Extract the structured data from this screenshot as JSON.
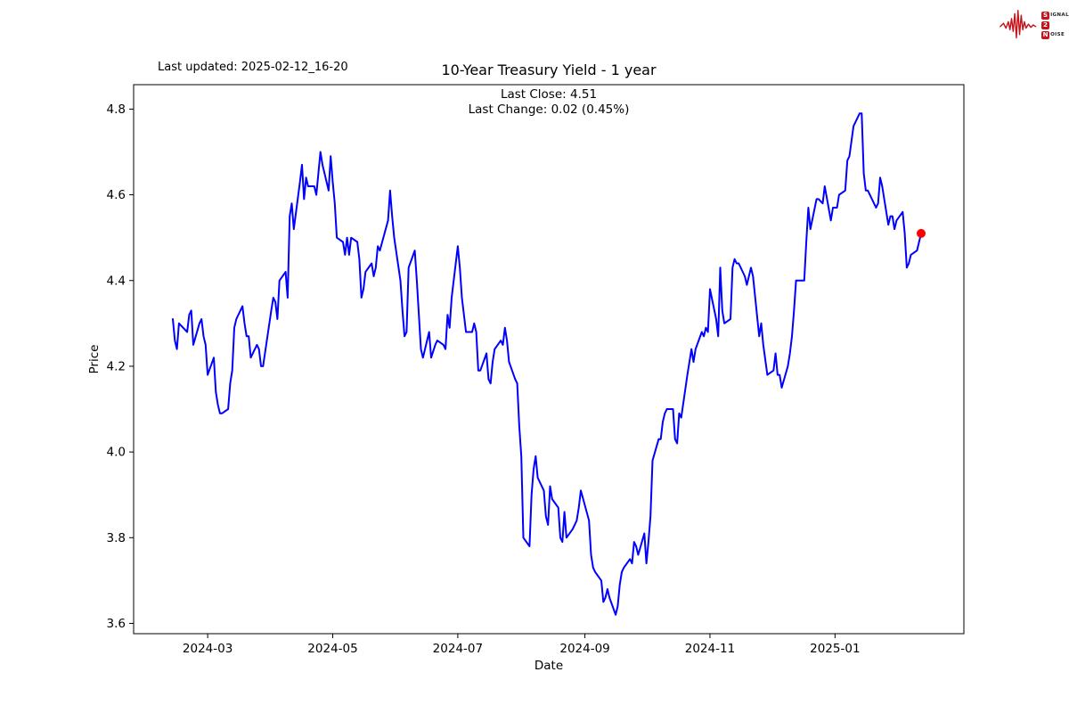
{
  "header": {
    "last_updated": "Last updated: 2025-02-12_16-20",
    "title": "10-Year Treasury Yield - 1 year",
    "subtitle_line1": "Last Close: 4.51",
    "subtitle_line2": "Last Change: 0.02 (0.45%)"
  },
  "logo": {
    "name": "Signal 2 Noise",
    "color": "#c3161c",
    "row1_letter": "S",
    "row1_rest": "IGNAL",
    "row2_letter": "2",
    "row2_rest": "",
    "row3_letter": "N",
    "row3_rest": "OISE"
  },
  "chart_data": {
    "type": "line",
    "title": "10-Year Treasury Yield - 1 year",
    "xlabel": "Date",
    "ylabel": "Price",
    "last_close": 4.51,
    "last_change": 0.02,
    "last_change_pct": "0.45%",
    "line_color": "#0000ff",
    "marker_color": "#ff0000",
    "axis_color": "#000000",
    "ylim": [
      3.576,
      4.857
    ],
    "grid": false,
    "legend": "none",
    "yticks": [
      {
        "v": 3.6,
        "label": "3.6"
      },
      {
        "v": 3.8,
        "label": "3.8"
      },
      {
        "v": 4.0,
        "label": "4.0"
      },
      {
        "v": 4.2,
        "label": "4.2"
      },
      {
        "v": 4.4,
        "label": "4.4"
      },
      {
        "v": 4.6,
        "label": "4.6"
      },
      {
        "v": 4.8,
        "label": "4.8"
      }
    ],
    "xticks": [
      {
        "date": "2024-03-01",
        "label": "2024-03"
      },
      {
        "date": "2024-05-01",
        "label": "2024-05"
      },
      {
        "date": "2024-07-01",
        "label": "2024-07"
      },
      {
        "date": "2024-09-01",
        "label": "2024-09"
      },
      {
        "date": "2024-11-01",
        "label": "2024-11"
      },
      {
        "date": "2025-01-01",
        "label": "2025-01"
      }
    ],
    "series": [
      {
        "name": "10-Year Treasury Yield",
        "points": [
          [
            "2024-02-13",
            4.31
          ],
          [
            "2024-02-14",
            4.26
          ],
          [
            "2024-02-15",
            4.24
          ],
          [
            "2024-02-16",
            4.3
          ],
          [
            "2024-02-20",
            4.28
          ],
          [
            "2024-02-21",
            4.32
          ],
          [
            "2024-02-22",
            4.33
          ],
          [
            "2024-02-23",
            4.25
          ],
          [
            "2024-02-26",
            4.3
          ],
          [
            "2024-02-27",
            4.31
          ],
          [
            "2024-02-28",
            4.27
          ],
          [
            "2024-02-29",
            4.25
          ],
          [
            "2024-03-01",
            4.18
          ],
          [
            "2024-03-04",
            4.22
          ],
          [
            "2024-03-05",
            4.14
          ],
          [
            "2024-03-06",
            4.11
          ],
          [
            "2024-03-07",
            4.09
          ],
          [
            "2024-03-08",
            4.09
          ],
          [
            "2024-03-11",
            4.1
          ],
          [
            "2024-03-12",
            4.16
          ],
          [
            "2024-03-13",
            4.19
          ],
          [
            "2024-03-14",
            4.29
          ],
          [
            "2024-03-15",
            4.31
          ],
          [
            "2024-03-18",
            4.34
          ],
          [
            "2024-03-19",
            4.3
          ],
          [
            "2024-03-20",
            4.27
          ],
          [
            "2024-03-21",
            4.27
          ],
          [
            "2024-03-22",
            4.22
          ],
          [
            "2024-03-25",
            4.25
          ],
          [
            "2024-03-26",
            4.24
          ],
          [
            "2024-03-27",
            4.2
          ],
          [
            "2024-03-28",
            4.2
          ],
          [
            "2024-04-01",
            4.33
          ],
          [
            "2024-04-02",
            4.36
          ],
          [
            "2024-04-03",
            4.35
          ],
          [
            "2024-04-04",
            4.31
          ],
          [
            "2024-04-05",
            4.4
          ],
          [
            "2024-04-08",
            4.42
          ],
          [
            "2024-04-09",
            4.36
          ],
          [
            "2024-04-10",
            4.55
          ],
          [
            "2024-04-11",
            4.58
          ],
          [
            "2024-04-12",
            4.52
          ],
          [
            "2024-04-15",
            4.63
          ],
          [
            "2024-04-16",
            4.67
          ],
          [
            "2024-04-17",
            4.59
          ],
          [
            "2024-04-18",
            4.64
          ],
          [
            "2024-04-19",
            4.62
          ],
          [
            "2024-04-22",
            4.62
          ],
          [
            "2024-04-23",
            4.6
          ],
          [
            "2024-04-24",
            4.65
          ],
          [
            "2024-04-25",
            4.7
          ],
          [
            "2024-04-26",
            4.67
          ],
          [
            "2024-04-29",
            4.61
          ],
          [
            "2024-04-30",
            4.69
          ],
          [
            "2024-05-01",
            4.63
          ],
          [
            "2024-05-02",
            4.58
          ],
          [
            "2024-05-03",
            4.5
          ],
          [
            "2024-05-06",
            4.49
          ],
          [
            "2024-05-07",
            4.46
          ],
          [
            "2024-05-08",
            4.5
          ],
          [
            "2024-05-09",
            4.46
          ],
          [
            "2024-05-10",
            4.5
          ],
          [
            "2024-05-13",
            4.49
          ],
          [
            "2024-05-14",
            4.45
          ],
          [
            "2024-05-15",
            4.36
          ],
          [
            "2024-05-16",
            4.38
          ],
          [
            "2024-05-17",
            4.42
          ],
          [
            "2024-05-20",
            4.44
          ],
          [
            "2024-05-21",
            4.41
          ],
          [
            "2024-05-22",
            4.43
          ],
          [
            "2024-05-23",
            4.48
          ],
          [
            "2024-05-24",
            4.47
          ],
          [
            "2024-05-28",
            4.54
          ],
          [
            "2024-05-29",
            4.61
          ],
          [
            "2024-05-30",
            4.55
          ],
          [
            "2024-05-31",
            4.5
          ],
          [
            "2024-06-03",
            4.4
          ],
          [
            "2024-06-04",
            4.33
          ],
          [
            "2024-06-05",
            4.27
          ],
          [
            "2024-06-06",
            4.28
          ],
          [
            "2024-06-07",
            4.43
          ],
          [
            "2024-06-10",
            4.47
          ],
          [
            "2024-06-11",
            4.4
          ],
          [
            "2024-06-12",
            4.32
          ],
          [
            "2024-06-13",
            4.24
          ],
          [
            "2024-06-14",
            4.22
          ],
          [
            "2024-06-17",
            4.28
          ],
          [
            "2024-06-18",
            4.22
          ],
          [
            "2024-06-20",
            4.25
          ],
          [
            "2024-06-21",
            4.26
          ],
          [
            "2024-06-24",
            4.25
          ],
          [
            "2024-06-25",
            4.24
          ],
          [
            "2024-06-26",
            4.32
          ],
          [
            "2024-06-27",
            4.29
          ],
          [
            "2024-06-28",
            4.36
          ],
          [
            "2024-07-01",
            4.48
          ],
          [
            "2024-07-02",
            4.43
          ],
          [
            "2024-07-03",
            4.36
          ],
          [
            "2024-07-05",
            4.28
          ],
          [
            "2024-07-08",
            4.28
          ],
          [
            "2024-07-09",
            4.3
          ],
          [
            "2024-07-10",
            4.28
          ],
          [
            "2024-07-11",
            4.19
          ],
          [
            "2024-07-12",
            4.19
          ],
          [
            "2024-07-15",
            4.23
          ],
          [
            "2024-07-16",
            4.17
          ],
          [
            "2024-07-17",
            4.16
          ],
          [
            "2024-07-18",
            4.21
          ],
          [
            "2024-07-19",
            4.24
          ],
          [
            "2024-07-22",
            4.26
          ],
          [
            "2024-07-23",
            4.25
          ],
          [
            "2024-07-24",
            4.29
          ],
          [
            "2024-07-25",
            4.26
          ],
          [
            "2024-07-26",
            4.21
          ],
          [
            "2024-07-29",
            4.17
          ],
          [
            "2024-07-30",
            4.16
          ],
          [
            "2024-07-31",
            4.06
          ],
          [
            "2024-08-01",
            3.99
          ],
          [
            "2024-08-02",
            3.8
          ],
          [
            "2024-08-05",
            3.78
          ],
          [
            "2024-08-06",
            3.9
          ],
          [
            "2024-08-07",
            3.96
          ],
          [
            "2024-08-08",
            3.99
          ],
          [
            "2024-08-09",
            3.94
          ],
          [
            "2024-08-12",
            3.91
          ],
          [
            "2024-08-13",
            3.85
          ],
          [
            "2024-08-14",
            3.83
          ],
          [
            "2024-08-15",
            3.92
          ],
          [
            "2024-08-16",
            3.89
          ],
          [
            "2024-08-19",
            3.87
          ],
          [
            "2024-08-20",
            3.8
          ],
          [
            "2024-08-21",
            3.79
          ],
          [
            "2024-08-22",
            3.86
          ],
          [
            "2024-08-23",
            3.8
          ],
          [
            "2024-08-26",
            3.82
          ],
          [
            "2024-08-27",
            3.83
          ],
          [
            "2024-08-28",
            3.84
          ],
          [
            "2024-08-29",
            3.87
          ],
          [
            "2024-08-30",
            3.91
          ],
          [
            "2024-09-03",
            3.84
          ],
          [
            "2024-09-04",
            3.76
          ],
          [
            "2024-09-05",
            3.73
          ],
          [
            "2024-09-06",
            3.72
          ],
          [
            "2024-09-09",
            3.7
          ],
          [
            "2024-09-10",
            3.65
          ],
          [
            "2024-09-11",
            3.66
          ],
          [
            "2024-09-12",
            3.68
          ],
          [
            "2024-09-13",
            3.66
          ],
          [
            "2024-09-16",
            3.62
          ],
          [
            "2024-09-17",
            3.64
          ],
          [
            "2024-09-18",
            3.69
          ],
          [
            "2024-09-19",
            3.72
          ],
          [
            "2024-09-20",
            3.73
          ],
          [
            "2024-09-23",
            3.75
          ],
          [
            "2024-09-24",
            3.74
          ],
          [
            "2024-09-25",
            3.79
          ],
          [
            "2024-09-26",
            3.78
          ],
          [
            "2024-09-27",
            3.76
          ],
          [
            "2024-09-30",
            3.81
          ],
          [
            "2024-10-01",
            3.74
          ],
          [
            "2024-10-02",
            3.79
          ],
          [
            "2024-10-03",
            3.85
          ],
          [
            "2024-10-04",
            3.98
          ],
          [
            "2024-10-07",
            4.03
          ],
          [
            "2024-10-08",
            4.03
          ],
          [
            "2024-10-09",
            4.07
          ],
          [
            "2024-10-10",
            4.09
          ],
          [
            "2024-10-11",
            4.1
          ],
          [
            "2024-10-14",
            4.1
          ],
          [
            "2024-10-15",
            4.03
          ],
          [
            "2024-10-16",
            4.02
          ],
          [
            "2024-10-17",
            4.09
          ],
          [
            "2024-10-18",
            4.08
          ],
          [
            "2024-10-21",
            4.18
          ],
          [
            "2024-10-22",
            4.21
          ],
          [
            "2024-10-23",
            4.24
          ],
          [
            "2024-10-24",
            4.21
          ],
          [
            "2024-10-25",
            4.24
          ],
          [
            "2024-10-28",
            4.28
          ],
          [
            "2024-10-29",
            4.27
          ],
          [
            "2024-10-30",
            4.29
          ],
          [
            "2024-10-31",
            4.28
          ],
          [
            "2024-11-01",
            4.38
          ],
          [
            "2024-11-04",
            4.31
          ],
          [
            "2024-11-05",
            4.27
          ],
          [
            "2024-11-06",
            4.43
          ],
          [
            "2024-11-07",
            4.33
          ],
          [
            "2024-11-08",
            4.3
          ],
          [
            "2024-11-11",
            4.31
          ],
          [
            "2024-11-12",
            4.43
          ],
          [
            "2024-11-13",
            4.45
          ],
          [
            "2024-11-14",
            4.44
          ],
          [
            "2024-11-15",
            4.44
          ],
          [
            "2024-11-18",
            4.41
          ],
          [
            "2024-11-19",
            4.39
          ],
          [
            "2024-11-20",
            4.41
          ],
          [
            "2024-11-21",
            4.43
          ],
          [
            "2024-11-22",
            4.41
          ],
          [
            "2024-11-25",
            4.27
          ],
          [
            "2024-11-26",
            4.3
          ],
          [
            "2024-11-27",
            4.25
          ],
          [
            "2024-11-29",
            4.18
          ],
          [
            "2024-12-02",
            4.19
          ],
          [
            "2024-12-03",
            4.23
          ],
          [
            "2024-12-04",
            4.18
          ],
          [
            "2024-12-05",
            4.18
          ],
          [
            "2024-12-06",
            4.15
          ],
          [
            "2024-12-09",
            4.2
          ],
          [
            "2024-12-10",
            4.23
          ],
          [
            "2024-12-11",
            4.27
          ],
          [
            "2024-12-12",
            4.33
          ],
          [
            "2024-12-13",
            4.4
          ],
          [
            "2024-12-16",
            4.4
          ],
          [
            "2024-12-17",
            4.4
          ],
          [
            "2024-12-18",
            4.49
          ],
          [
            "2024-12-19",
            4.57
          ],
          [
            "2024-12-20",
            4.52
          ],
          [
            "2024-12-23",
            4.59
          ],
          [
            "2024-12-24",
            4.59
          ],
          [
            "2024-12-26",
            4.58
          ],
          [
            "2024-12-27",
            4.62
          ],
          [
            "2024-12-30",
            4.54
          ],
          [
            "2024-12-31",
            4.57
          ],
          [
            "2025-01-02",
            4.57
          ],
          [
            "2025-01-03",
            4.6
          ],
          [
            "2025-01-06",
            4.61
          ],
          [
            "2025-01-07",
            4.68
          ],
          [
            "2025-01-08",
            4.69
          ],
          [
            "2025-01-10",
            4.76
          ],
          [
            "2025-01-13",
            4.79
          ],
          [
            "2025-01-14",
            4.79
          ],
          [
            "2025-01-15",
            4.65
          ],
          [
            "2025-01-16",
            4.61
          ],
          [
            "2025-01-17",
            4.61
          ],
          [
            "2025-01-21",
            4.57
          ],
          [
            "2025-01-22",
            4.58
          ],
          [
            "2025-01-23",
            4.64
          ],
          [
            "2025-01-24",
            4.62
          ],
          [
            "2025-01-27",
            4.53
          ],
          [
            "2025-01-28",
            4.55
          ],
          [
            "2025-01-29",
            4.55
          ],
          [
            "2025-01-30",
            4.52
          ],
          [
            "2025-01-31",
            4.54
          ],
          [
            "2025-02-03",
            4.56
          ],
          [
            "2025-02-04",
            4.51
          ],
          [
            "2025-02-05",
            4.43
          ],
          [
            "2025-02-06",
            4.44
          ],
          [
            "2025-02-07",
            4.46
          ],
          [
            "2025-02-10",
            4.47
          ],
          [
            "2025-02-11",
            4.49
          ],
          [
            "2025-02-12",
            4.51
          ]
        ]
      }
    ]
  }
}
